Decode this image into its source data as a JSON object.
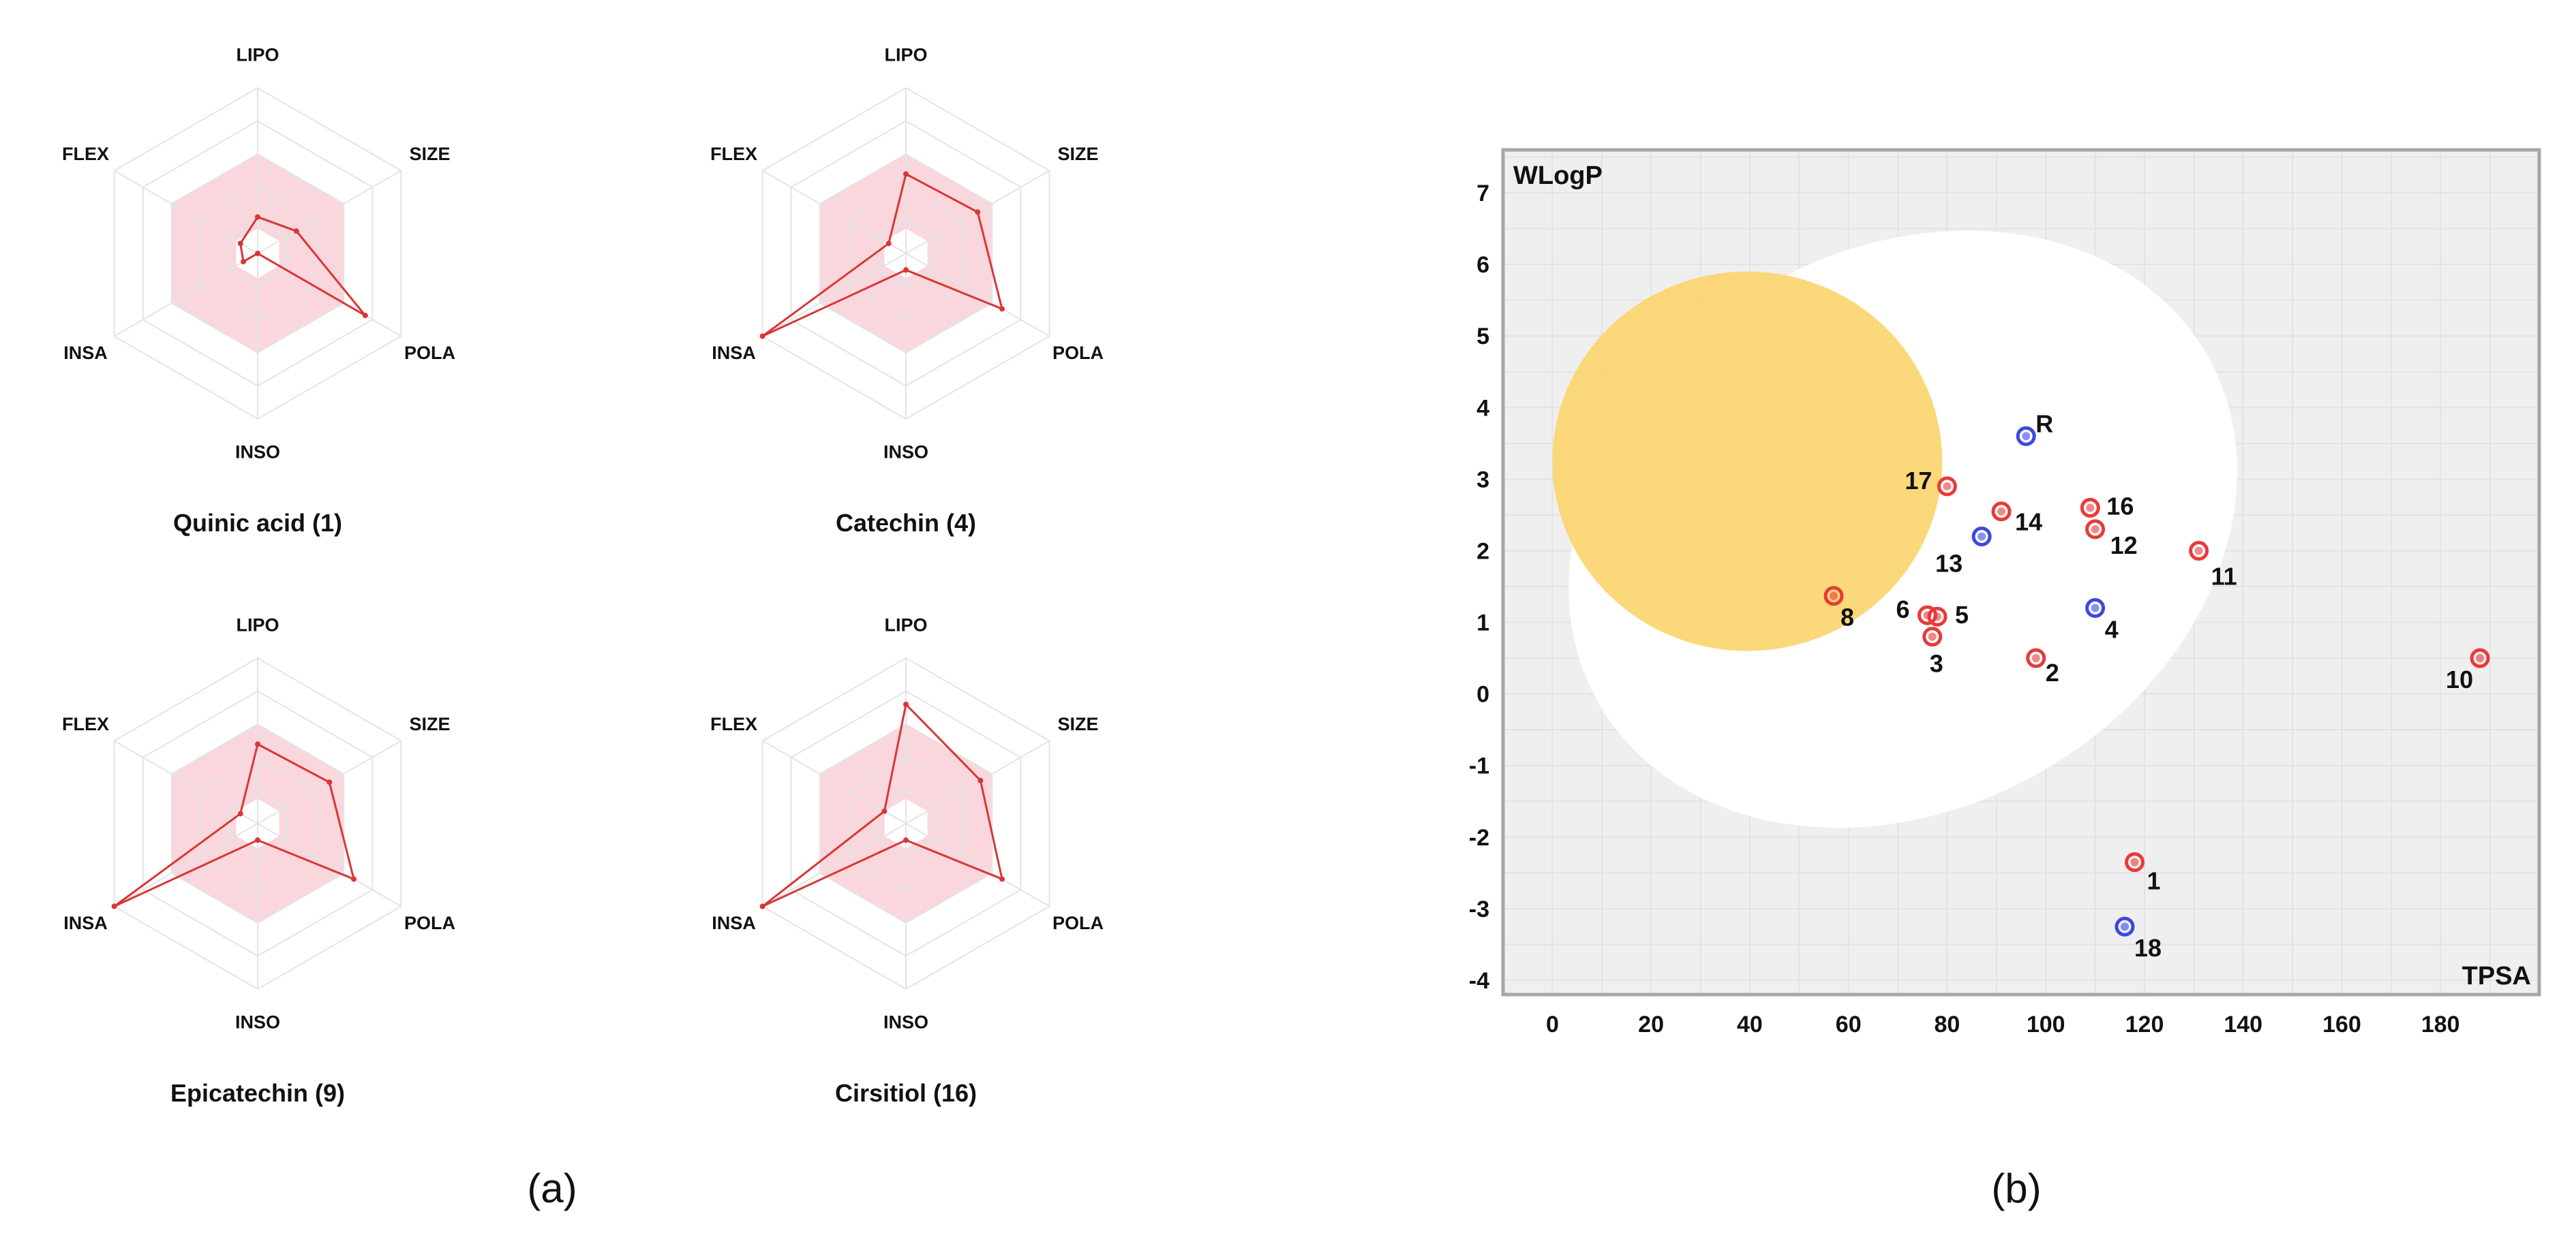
{
  "panel_labels": {
    "a": "(a)",
    "b": "(b)"
  },
  "chart_data": [
    {
      "type": "radar",
      "title": "Quinic acid (1)",
      "axes": [
        "LIPO",
        "SIZE",
        "POLA",
        "INSO",
        "INSA",
        "FLEX"
      ],
      "values": [
        0.22,
        0.27,
        0.75,
        0.0,
        0.1,
        0.12
      ],
      "range": [
        0,
        1
      ],
      "optimal_range": [
        0.15,
        0.6
      ],
      "colors": {
        "line": "#d93636",
        "band": "#f9d7dc"
      }
    },
    {
      "type": "radar",
      "title": "Catechin (4)",
      "axes": [
        "LIPO",
        "SIZE",
        "POLA",
        "INSO",
        "INSA",
        "FLEX"
      ],
      "values": [
        0.48,
        0.5,
        0.67,
        0.1,
        1.0,
        0.12
      ],
      "range": [
        0,
        1
      ],
      "optimal_range": [
        0.15,
        0.6
      ],
      "colors": {
        "line": "#d93636",
        "band": "#f9d7dc"
      }
    },
    {
      "type": "radar",
      "title": "Epicatechin (9)",
      "axes": [
        "LIPO",
        "SIZE",
        "POLA",
        "INSO",
        "INSA",
        "FLEX"
      ],
      "values": [
        0.48,
        0.5,
        0.67,
        0.1,
        1.0,
        0.12
      ],
      "range": [
        0,
        1
      ],
      "optimal_range": [
        0.15,
        0.6
      ],
      "colors": {
        "line": "#d93636",
        "band": "#f9d7dc"
      }
    },
    {
      "type": "radar",
      "title": "Cirsitiol (16)",
      "axes": [
        "LIPO",
        "SIZE",
        "POLA",
        "INSO",
        "INSA",
        "FLEX"
      ],
      "values": [
        0.72,
        0.52,
        0.67,
        0.1,
        1.0,
        0.15
      ],
      "range": [
        0,
        1
      ],
      "optimal_range": [
        0.15,
        0.6
      ],
      "colors": {
        "line": "#d93636",
        "band": "#f9d7dc"
      }
    },
    {
      "type": "scatter",
      "title": "",
      "xlabel": "TPSA",
      "ylabel": "WLogP",
      "xlim": [
        -10,
        200
      ],
      "ylim": [
        -4.2,
        7.6
      ],
      "xticks": [
        0,
        20,
        40,
        60,
        80,
        100,
        120,
        140,
        160,
        180
      ],
      "yticks": [
        -4,
        -3,
        -2,
        -1,
        0,
        1,
        2,
        3,
        4,
        5,
        6,
        7
      ],
      "grid": true,
      "regions": [
        {
          "name": "white",
          "shape": "ellipse",
          "center": [
            71.05,
            2.3
          ],
          "radii": [
            71.05,
            3.9
          ],
          "angle": -30,
          "color": "#ffffff"
        },
        {
          "name": "yolk",
          "shape": "ellipse",
          "center": [
            39.5,
            3.25
          ],
          "radii": [
            39.5,
            2.65
          ],
          "angle": 0,
          "color": "#fbd56e"
        }
      ],
      "points": [
        {
          "label": "1",
          "x": 118,
          "y": -2.35,
          "color": "red"
        },
        {
          "label": "2",
          "x": 98,
          "y": 0.5,
          "color": "red"
        },
        {
          "label": "3",
          "x": 77,
          "y": 0.8,
          "color": "red"
        },
        {
          "label": "4",
          "x": 110,
          "y": 1.2,
          "color": "blue"
        },
        {
          "label": "5",
          "x": 78,
          "y": 1.08,
          "color": "red"
        },
        {
          "label": "6",
          "x": 76,
          "y": 1.1,
          "color": "red"
        },
        {
          "label": "8",
          "x": 57,
          "y": 1.37,
          "color": "red"
        },
        {
          "label": "10",
          "x": 188,
          "y": 0.5,
          "color": "red"
        },
        {
          "label": "11",
          "x": 131,
          "y": 2.0,
          "color": "red"
        },
        {
          "label": "12",
          "x": 110,
          "y": 2.3,
          "color": "red"
        },
        {
          "label": "13",
          "x": 87,
          "y": 2.2,
          "color": "blue"
        },
        {
          "label": "14",
          "x": 91,
          "y": 2.55,
          "color": "red"
        },
        {
          "label": "16",
          "x": 109,
          "y": 2.6,
          "color": "red"
        },
        {
          "label": "17",
          "x": 80,
          "y": 2.9,
          "color": "red"
        },
        {
          "label": "18",
          "x": 116,
          "y": -3.25,
          "color": "blue"
        },
        {
          "label": "R",
          "x": 96,
          "y": 3.6,
          "color": "blue"
        }
      ],
      "colors": {
        "red": "#e83a3a",
        "blue": "#3b49e0",
        "background": "#efefef",
        "border": "#a6a6a6"
      }
    }
  ]
}
